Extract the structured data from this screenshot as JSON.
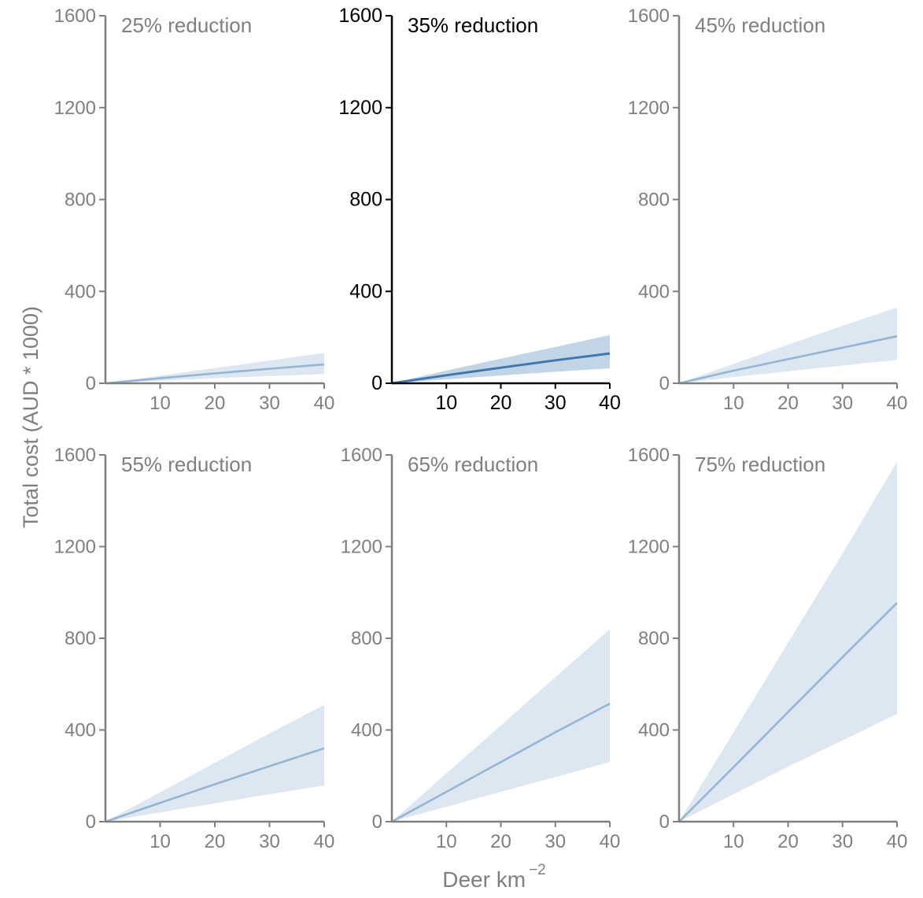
{
  "figure": {
    "ylabel": "Total cost (AUD * 1000)",
    "xlabel_main": "Deer km",
    "xlabel_exp": "−2"
  },
  "colors": {
    "muted_axis": "#7f7f7f",
    "highlight_axis": "#000000",
    "muted_band": "#dde7f1",
    "highlight_band": "#c2d5e7",
    "muted_line": "#95b5d4",
    "highlight_line": "#3f76ae"
  },
  "chart_data": [
    {
      "type": "line",
      "title": "25% reduction",
      "highlight": false,
      "x": [
        0,
        10,
        20,
        30,
        40
      ],
      "xticks": [
        10,
        20,
        30,
        40
      ],
      "yticks": [
        0,
        400,
        800,
        1200,
        1600
      ],
      "xlim": [
        0,
        40
      ],
      "ylim": [
        0,
        1600
      ],
      "series": [
        {
          "values": [
            0,
            22,
            43,
            63,
            82
          ],
          "lower": [
            0,
            11,
            22,
            32,
            40
          ],
          "upper": [
            0,
            33,
            66,
            99,
            132
          ]
        }
      ]
    },
    {
      "type": "line",
      "title": "35% reduction",
      "highlight": true,
      "x": [
        0,
        10,
        20,
        30,
        40
      ],
      "xticks": [
        10,
        20,
        30,
        40
      ],
      "yticks": [
        0,
        400,
        800,
        1200,
        1600
      ],
      "xlim": [
        0,
        40
      ],
      "ylim": [
        0,
        1600
      ],
      "series": [
        {
          "values": [
            0,
            35,
            68,
            100,
            130
          ],
          "lower": [
            0,
            17,
            34,
            50,
            65
          ],
          "upper": [
            0,
            55,
            107,
            158,
            210
          ]
        }
      ]
    },
    {
      "type": "line",
      "title": "45% reduction",
      "highlight": false,
      "x": [
        0,
        10,
        20,
        30,
        40
      ],
      "xticks": [
        10,
        20,
        30,
        40
      ],
      "yticks": [
        0,
        400,
        800,
        1200,
        1600
      ],
      "xlim": [
        0,
        40
      ],
      "ylim": [
        0,
        1600
      ],
      "series": [
        {
          "values": [
            0,
            55,
            105,
            155,
            205
          ],
          "lower": [
            0,
            27,
            52,
            77,
            102
          ],
          "upper": [
            0,
            85,
            168,
            250,
            330
          ]
        }
      ]
    },
    {
      "type": "line",
      "title": "55% reduction",
      "highlight": false,
      "x": [
        0,
        10,
        20,
        30,
        40
      ],
      "xticks": [
        10,
        20,
        30,
        40
      ],
      "yticks": [
        0,
        400,
        800,
        1200,
        1600
      ],
      "xlim": [
        0,
        40
      ],
      "ylim": [
        0,
        1600
      ],
      "series": [
        {
          "values": [
            0,
            82,
            163,
            242,
            320
          ],
          "lower": [
            0,
            40,
            80,
            120,
            158
          ],
          "upper": [
            0,
            128,
            256,
            385,
            510
          ]
        }
      ]
    },
    {
      "type": "line",
      "title": "65% reduction",
      "highlight": false,
      "x": [
        0,
        10,
        20,
        30,
        40
      ],
      "xticks": [
        10,
        20,
        30,
        40
      ],
      "yticks": [
        0,
        400,
        800,
        1200,
        1600
      ],
      "xlim": [
        0,
        40
      ],
      "ylim": [
        0,
        1600
      ],
      "series": [
        {
          "values": [
            0,
            130,
            260,
            390,
            515
          ],
          "lower": [
            0,
            65,
            130,
            195,
            260
          ],
          "upper": [
            0,
            210,
            420,
            630,
            840
          ]
        }
      ]
    },
    {
      "type": "line",
      "title": "75% reduction",
      "highlight": false,
      "x": [
        0,
        10,
        20,
        30,
        40
      ],
      "xticks": [
        10,
        20,
        30,
        40
      ],
      "yticks": [
        0,
        400,
        800,
        1200,
        1600
      ],
      "xlim": [
        0,
        40
      ],
      "ylim": [
        0,
        1600
      ],
      "series": [
        {
          "values": [
            0,
            238,
            478,
            718,
            955
          ],
          "lower": [
            0,
            120,
            240,
            355,
            470
          ],
          "upper": [
            0,
            390,
            780,
            1170,
            1570
          ]
        }
      ]
    }
  ]
}
